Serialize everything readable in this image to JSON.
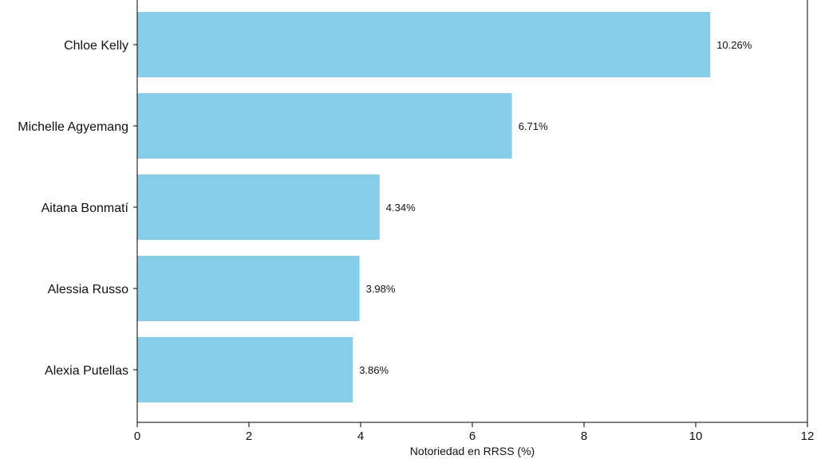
{
  "chart_data": {
    "type": "bar",
    "orientation": "horizontal",
    "categories": [
      "Chloe Kelly",
      "Michelle Agyemang",
      "Aitana Bonmatí",
      "Alessia Russo",
      "Alexia Putellas"
    ],
    "values": [
      10.26,
      6.71,
      4.34,
      3.98,
      3.86
    ],
    "data_labels": [
      "10.26%",
      "6.71%",
      "4.34%",
      "3.98%",
      "3.86%"
    ],
    "xlabel": "Notoriedad en RRSS (%)",
    "ylabel": "",
    "xlim": [
      0,
      12
    ],
    "xticks": [
      0,
      2,
      4,
      6,
      8,
      10,
      12
    ],
    "xtick_labels": [
      "0",
      "2",
      "4",
      "6",
      "8",
      "10",
      "12"
    ],
    "bar_color": "#87ceeb",
    "grid": false,
    "legend": "none"
  }
}
